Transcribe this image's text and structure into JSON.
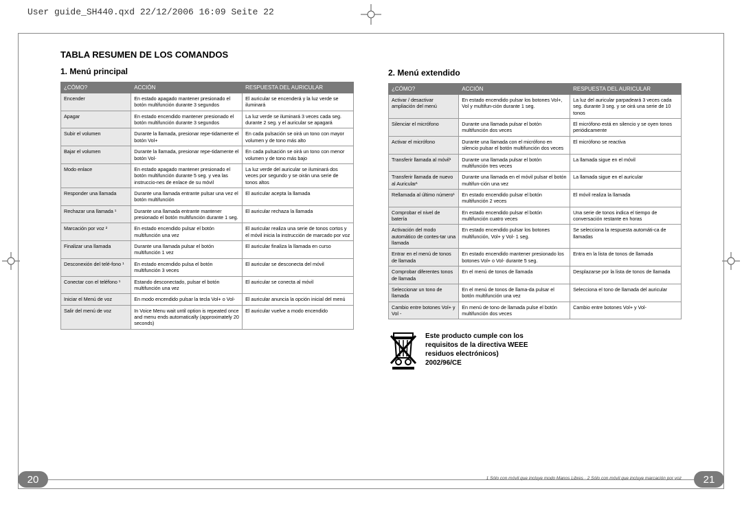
{
  "header": "User guide_SH440.qxd  22/12/2006  16:09  Seite 22",
  "doc_title": "TABLA RESUMEN DE LOS COMANDOS",
  "left": {
    "title": "1. Menú principal",
    "cols": [
      "¿CÓMO?",
      "ACCIÓN",
      "RESPUESTA DEL AURICULAR"
    ],
    "rows": [
      [
        "Encender",
        "En estado apagado mantener presionado el botón multifunción durante 3 segundos",
        "El auricular se encenderá y la luz verde se iluminará"
      ],
      [
        "Apagar",
        "En estado encendido mantener presionado el botón multifunción durante 3 segundos",
        "La luz verde se iluminará 3 veces cada seg. durante 2 seg. y el auricular se apagará"
      ],
      [
        "Subir el volumen",
        "Durante la llamada, presionar repe-tidamente el botón Vol+",
        "En cada pulsación se oirá un tono con mayor volumen y de tono más alto"
      ],
      [
        "Bajar el volumen",
        "Durante la llamada, presionar repe-tidamente el botón Vol-",
        "En cada pulsación se oirá un tono con menor volumen y de tono más bajo"
      ],
      [
        "Modo enlace",
        "En estado apagado mantener presionado el botón multifunción durante 5 seg. y vea las instruccio-nes de enlace de su móvil",
        "La luz verde del auricular se iluminará dos veces por segundo y se oirán una serie de tonos altos"
      ],
      [
        "Responder una llamada",
        "Durante una llamada entrante pulsar una vez el botón multifunción",
        "El auricular acepta la llamada"
      ],
      [
        "Rechazar una llamada ¹",
        "Durante una llamada entrante mantener presionado el botón multifunción durante 1 seg.",
        "El auricular rechaza la llamada"
      ],
      [
        "Marcación por voz ²",
        "En estado encendido pulsar el botón multifunción una vez",
        "El auricular realiza una serie de tonos cortos y el móvil inicia la instrucción de marcado por voz"
      ],
      [
        "Finalizar una llamada",
        "Durante una llamada pulsar el botón multifunción 1 vez",
        "El auricular finaliza la llamada en curso"
      ],
      [
        "Desconexión del telé-fono ¹",
        "En estado encendido pulsa el botón multifunción 3 veces",
        "El auricular se desconecta del móvil"
      ],
      [
        "Conectar con el teléfono ¹",
        "Estando desconectado, pulsar el botón multifunción una vez",
        "El auricular se conecta al móvil"
      ],
      [
        "Iniciar el Menú de voz",
        "En modo encendido pulsar la tecla Vol+ o Vol-",
        "El auricular anuncia la opción inicial del menú"
      ],
      [
        "Salir del menú de voz",
        "In Voice Menu wait until option is repeated once and menu ends automatically (approximately 20 seconds)",
        "El auricular vuelve a modo encendido"
      ]
    ]
  },
  "right": {
    "title": "2. Menú extendido",
    "cols": [
      "¿CÓMO?",
      "ACCIÓN",
      "RESPUESTA DEL AURICULAR"
    ],
    "rows": [
      [
        "Activar / desactivar ampliación del menú",
        "En estado encendido pulsar los botones Vol+, Vol y multifun-ción durante 1 seg.",
        "La luz del auricular parpadeará 3 veces cada seg. durante 3 seg. y se oirá una serie de 10 tonos"
      ],
      [
        "Silenciar el micrófono",
        "Durante una llamada pulsar el botón multifunción dos veces",
        "El micrófono está en silencio y se oyen tonos periódicamente"
      ],
      [
        "Activar el micrófono",
        "Durante una llamada con el micrófono en silencio pulsar el botón multifunción dos veces",
        "El micrófono se reactiva"
      ],
      [
        "Transferir llamada al móvil¹",
        "Durante una llamada pulsar el botón multifunción tres veces",
        "La llamada sigue en el móvil"
      ],
      [
        "Transferir llamada de nuevo al Auricular¹",
        "Durante una llamada en el móvil pulsar el botón multifun-ción una vez",
        "La llamada sigue en el auricular"
      ],
      [
        "Rellamada al último número¹",
        "En estado encendido pulsar el botón multifunción 2 veces",
        "El móvil realiza la llamada"
      ],
      [
        "Comprobar el nivel de batería",
        "En estado encendido pulsar el botón multifunción cuatro veces",
        "Una serie de tonos indica el tiempo de conversación restante en horas"
      ],
      [
        "Activación del modo automático de contes-tar una llamada",
        "En estado encendido pulsar los botones multifunción, Vol+ y Vol- 1 seg.",
        "Se selecciona la respuesta automáti-ca de llamadas"
      ],
      [
        "Entrar en el menú de tonos de llamada",
        "En estado encendido mantener presionado los botones Vol+ o Vol- durante 5 seg.",
        "Entra en la lista de tonos de llamada"
      ],
      [
        "Comprobar diferentes tonos de llamada",
        "En el menú de tonos de llamada",
        "Desplazarse por la lista de tonos de llamada"
      ],
      [
        "Seleccionar un tono de llamada",
        "En el menú de tonos de llama-da pulsar el botón multifunción una vez",
        "Selecciona el tono de llamada del auricular"
      ],
      [
        "Cambio entre botones Vol+ y Vol -",
        "En menú de tono de llamada pulse el botón multifunción dos veces",
        "Cambio entre botones Vol+ y Vol-"
      ]
    ]
  },
  "weee": {
    "l1": "Este producto cumple con los",
    "l2": "requisitos de la directiva WEEE",
    "l3": "residuos electrónicos)",
    "l4": "2002/96/CE"
  },
  "footnote": "1 Sólo con móvil que incluye modo Manos Libres · 2 Sólo con móvil que incluye marcación por voz",
  "page_left": "20",
  "page_right": "21",
  "colors": {
    "header_bg": "#7a7a7a",
    "header_fg": "#ffffff",
    "row_shade": "#e8e8e8",
    "border": "#999999"
  }
}
